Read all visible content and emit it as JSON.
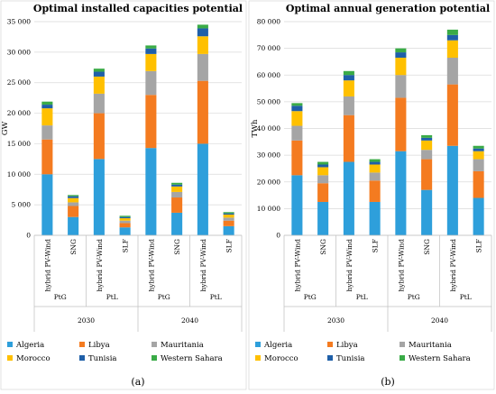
{
  "panel_labels": [
    "(a)",
    "(b)"
  ],
  "series_names": [
    "Algeria",
    "Libya",
    "Mauritania",
    "Morocco",
    "Tunisia",
    "Western Sahara"
  ],
  "colors": {
    "Algeria": "#2e9fdb",
    "Libya": "#f47b20",
    "Mauritania": "#a5a5a5",
    "Morocco": "#ffc000",
    "Tunisia": "#1f5fa8",
    "Western Sahara": "#3aab47",
    "grid": "#d9d9d9",
    "axis": "#bfbfbf"
  },
  "chart_data": [
    {
      "type": "bar",
      "stacked": true,
      "title": "Optimal installed  capacities potential",
      "ylabel": "GW",
      "ylim": [
        0,
        35000
      ],
      "yticks": [
        "0",
        "5 000",
        "10 000",
        "15 000",
        "20 000",
        "25 000",
        "30 000",
        "35 000"
      ],
      "categories": [
        "hybrid PV-Wind",
        "SNG",
        "hybrid PV-Wind",
        "SLF",
        "hybrid PV-Wind",
        "SNG",
        "hybrid PV-Wind",
        "SLF"
      ],
      "groups": [
        "PtG",
        "PtL",
        "PtG",
        "PtL"
      ],
      "years": [
        "2030",
        "2040"
      ],
      "grid": true,
      "legend_position": "bottom",
      "series": [
        {
          "name": "Algeria",
          "values": [
            10000,
            3000,
            12500,
            1300,
            14300,
            3700,
            15000,
            1500
          ]
        },
        {
          "name": "Libya",
          "values": [
            5700,
            1800,
            7500,
            700,
            8700,
            2500,
            10300,
            900
          ]
        },
        {
          "name": "Mauritania",
          "values": [
            2300,
            600,
            3200,
            400,
            3900,
            900,
            4400,
            500
          ]
        },
        {
          "name": "Morocco",
          "values": [
            2800,
            700,
            2800,
            400,
            2800,
            900,
            2900,
            500
          ]
        },
        {
          "name": "Tunisia",
          "values": [
            600,
            300,
            800,
            200,
            900,
            300,
            1300,
            200
          ]
        },
        {
          "name": "Western Sahara",
          "values": [
            500,
            200,
            500,
            200,
            500,
            300,
            600,
            200
          ]
        }
      ]
    },
    {
      "type": "bar",
      "stacked": true,
      "title": "Optimal annual generation potential",
      "ylabel": "TWh",
      "ylim": [
        0,
        80000
      ],
      "yticks": [
        "0",
        "10 000",
        "20 000",
        "30 000",
        "40 000",
        "50 000",
        "60 000",
        "70 000",
        "80 000"
      ],
      "categories": [
        "hybrid PV-Wind",
        "SNG",
        "hybrid PV-Wind",
        "SLF",
        "hybrid PV-Wind",
        "SNG",
        "hybrid PV-Wind",
        "SLF"
      ],
      "groups": [
        "PtG",
        "PtL",
        "PtG",
        "PtL"
      ],
      "years": [
        "2030",
        "2040"
      ],
      "grid": true,
      "legend_position": "bottom",
      "series": [
        {
          "name": "Algeria",
          "values": [
            22500,
            12500,
            27500,
            12500,
            31500,
            17000,
            33500,
            14000
          ]
        },
        {
          "name": "Libya",
          "values": [
            13000,
            7000,
            17500,
            8000,
            20000,
            11500,
            23000,
            10000
          ]
        },
        {
          "name": "Mauritania",
          "values": [
            5500,
            3000,
            7000,
            3000,
            8500,
            3500,
            10000,
            4500
          ]
        },
        {
          "name": "Morocco",
          "values": [
            5500,
            3000,
            6000,
            3000,
            6500,
            3500,
            6500,
            3000
          ]
        },
        {
          "name": "Tunisia",
          "values": [
            2000,
            1000,
            2000,
            1000,
            2000,
            1000,
            2000,
            1000
          ]
        },
        {
          "name": "Western Sahara",
          "values": [
            1000,
            1000,
            1500,
            1000,
            1500,
            1000,
            2000,
            1000
          ]
        }
      ]
    }
  ]
}
